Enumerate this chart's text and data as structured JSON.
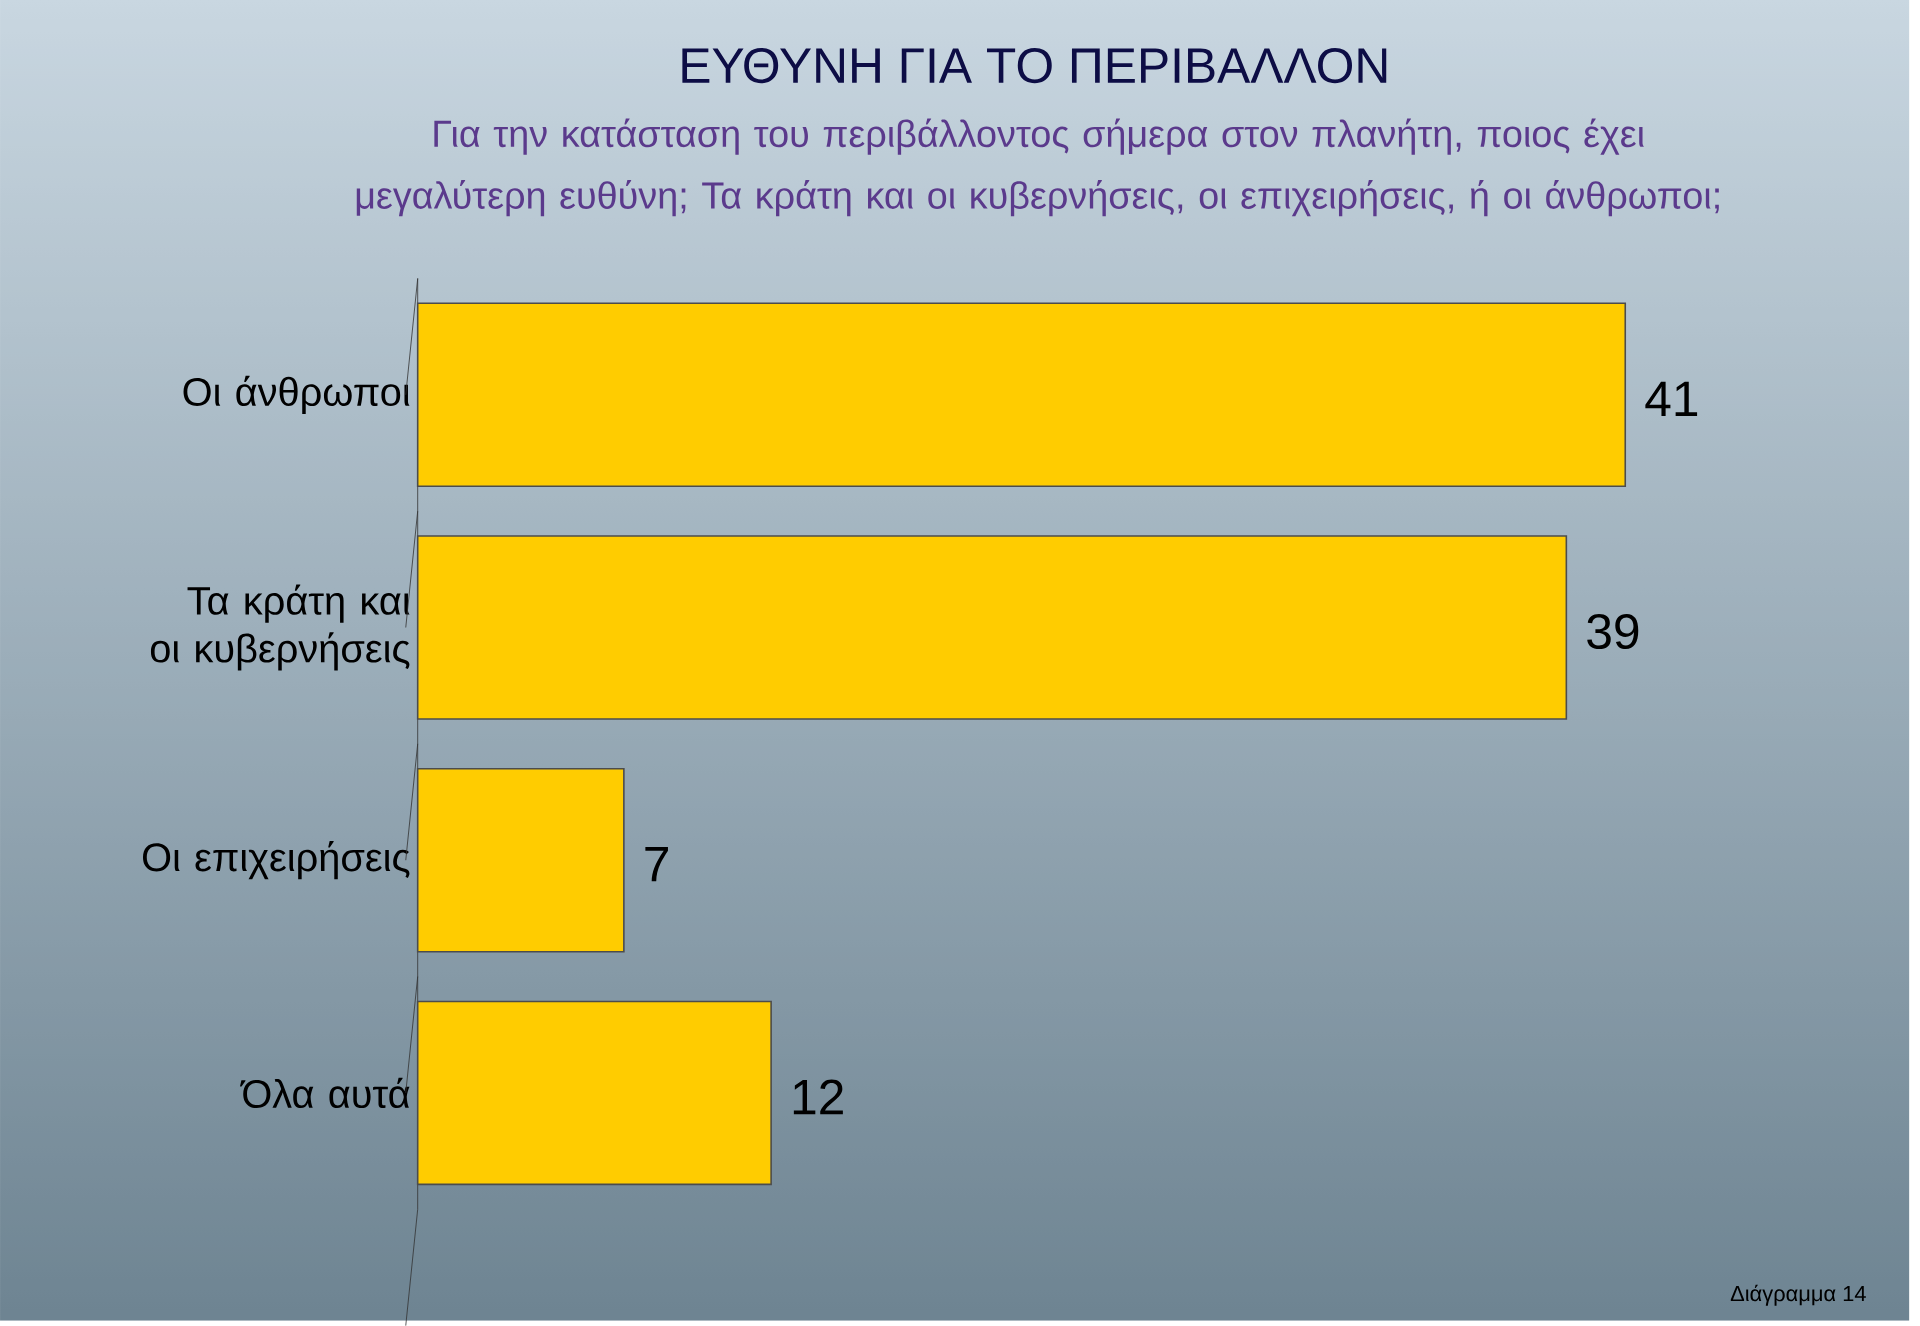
{
  "chart_data": {
    "type": "bar",
    "orientation": "horizontal",
    "title": "ΕΥΘΥΝΗ ΓΙΑ ΤΟ ΠΕΡΙΒΑΛΛΟΝ",
    "subtitle": "Για την κατάσταση του περιβάλλοντος σήμερα στον πλανήτη, ποιος έχει μεγαλύτερη ευθύνη; Τα κράτη και οι κυβερνήσεις, οι επιχειρήσεις, ή οι άνθρωποι;",
    "categories": [
      "Οι άνθρωποι",
      "Τα κράτη και οι κυβερνήσεις",
      "Οι επιχειρήσεις",
      "Όλα αυτά"
    ],
    "values": [
      41,
      39,
      7,
      12
    ],
    "color": "#ffcc00",
    "data_labels": true,
    "tick_labels": "y",
    "annotations": [
      "Διάγραμμα 14"
    ]
  }
}
